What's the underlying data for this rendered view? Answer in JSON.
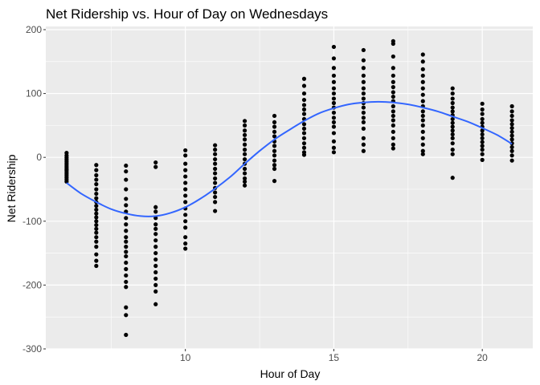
{
  "chart_data": {
    "type": "scatter",
    "title": "Net Ridership vs. Hour of Day on Wednesdays",
    "xlabel": "Hour of Day",
    "ylabel": "Net Ridership",
    "xlim": [
      5.3,
      21.7
    ],
    "ylim": [
      -300,
      205
    ],
    "x_ticks": [
      10,
      15,
      20
    ],
    "x_tick_labels": [
      "10",
      "15",
      "20"
    ],
    "y_ticks": [
      -300,
      -200,
      -100,
      0,
      100,
      200
    ],
    "y_tick_labels": [
      "-300",
      "-200",
      "-100",
      "0",
      "100",
      "200"
    ],
    "grid": true,
    "legend": "none",
    "colors": {
      "panel_bg": "#ebebeb",
      "grid": "#ffffff",
      "points": "#000000",
      "smooth_line": "#3366ff"
    },
    "points": [
      {
        "hour": 6,
        "values": [
          7,
          3,
          0,
          -3,
          -6,
          -9,
          -12,
          -15,
          -18,
          -20,
          -23,
          -26,
          -29,
          -32,
          -35,
          -38
        ]
      },
      {
        "hour": 7,
        "values": [
          -12,
          -20,
          -28,
          -35,
          -42,
          -50,
          -57,
          -64,
          -70,
          -76,
          -82,
          -88,
          -94,
          -100,
          -106,
          -112,
          -118,
          -125,
          -132,
          -140,
          -152,
          -162,
          -170
        ]
      },
      {
        "hour": 8,
        "values": [
          -13,
          -22,
          -35,
          -50,
          -65,
          -75,
          -85,
          -95,
          -105,
          -115,
          -125,
          -132,
          -140,
          -148,
          -155,
          -165,
          -175,
          -185,
          -195,
          -203,
          -235,
          -247,
          -278
        ]
      },
      {
        "hour": 9,
        "values": [
          -8,
          -15,
          -78,
          -85,
          -95,
          -105,
          -112,
          -120,
          -130,
          -140,
          -150,
          -160,
          -170,
          -180,
          -190,
          -200,
          -210,
          -230
        ]
      },
      {
        "hour": 10,
        "values": [
          11,
          3,
          -10,
          -20,
          -30,
          -40,
          -50,
          -60,
          -70,
          -80,
          -90,
          -100,
          -110,
          -125,
          -135,
          -143
        ]
      },
      {
        "hour": 11,
        "values": [
          19,
          12,
          5,
          -3,
          -10,
          -18,
          -25,
          -33,
          -40,
          -48,
          -55,
          -62,
          -70,
          -84
        ]
      },
      {
        "hour": 12,
        "values": [
          57,
          50,
          42,
          35,
          28,
          20,
          12,
          5,
          -3,
          -10,
          -18,
          -25,
          -33,
          -38,
          -44
        ]
      },
      {
        "hour": 13,
        "values": [
          65,
          55,
          48,
          40,
          33,
          25,
          18,
          10,
          3,
          -5,
          -12,
          -18,
          -37
        ]
      },
      {
        "hour": 14,
        "values": [
          123,
          112,
          100,
          90,
          82,
          75,
          68,
          60,
          52,
          45,
          38,
          30,
          22,
          15,
          8,
          4
        ]
      },
      {
        "hour": 15,
        "values": [
          173,
          155,
          140,
          128,
          118,
          108,
          100,
          92,
          85,
          78,
          70,
          62,
          55,
          48,
          38,
          25,
          15,
          8
        ]
      },
      {
        "hour": 16,
        "values": [
          168,
          152,
          140,
          128,
          118,
          108,
          100,
          92,
          85,
          78,
          70,
          62,
          55,
          45,
          30,
          20,
          10
        ]
      },
      {
        "hour": 17,
        "values": [
          182,
          178,
          158,
          140,
          128,
          118,
          110,
          102,
          95,
          88,
          80,
          72,
          65,
          58,
          50,
          40,
          30,
          20,
          14
        ]
      },
      {
        "hour": 18,
        "values": [
          161,
          150,
          138,
          128,
          118,
          108,
          98,
          88,
          80,
          72,
          65,
          58,
          50,
          40,
          30,
          20,
          10,
          5
        ]
      },
      {
        "hour": 19,
        "values": [
          108,
          100,
          92,
          85,
          78,
          72,
          66,
          60,
          54,
          48,
          42,
          36,
          30,
          22,
          12,
          5,
          -32
        ]
      },
      {
        "hour": 20,
        "values": [
          84,
          75,
          68,
          60,
          54,
          48,
          42,
          36,
          30,
          24,
          18,
          12,
          5,
          -4
        ]
      },
      {
        "hour": 21,
        "values": [
          80,
          72,
          65,
          58,
          52,
          46,
          40,
          34,
          28,
          22,
          16,
          10,
          3,
          -5
        ]
      }
    ],
    "smooth": {
      "x": [
        6,
        6.5,
        7,
        7.5,
        8,
        8.5,
        9,
        9.5,
        10,
        10.5,
        11,
        11.5,
        12,
        12.5,
        13,
        13.5,
        14,
        14.5,
        15,
        15.5,
        16,
        16.5,
        17,
        17.5,
        18,
        18.5,
        19,
        19.5,
        20,
        20.5,
        21
      ],
      "y": [
        -40,
        -57,
        -70,
        -81,
        -88,
        -92,
        -92,
        -87,
        -78,
        -65,
        -49,
        -31,
        -10,
        10,
        28,
        43,
        57,
        69,
        77,
        83,
        86,
        87,
        86,
        83,
        78,
        72,
        64,
        56,
        46,
        35,
        21
      ]
    }
  }
}
